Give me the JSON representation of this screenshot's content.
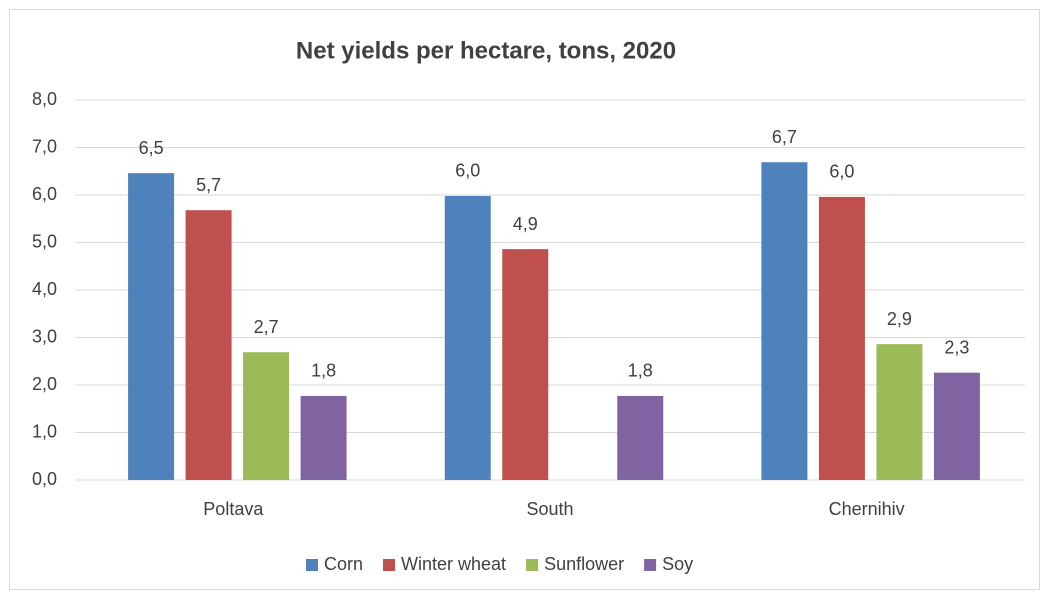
{
  "chart_data": {
    "type": "bar",
    "title": "Net yields per hectare, tons, 2020",
    "categories": [
      "Poltava",
      "South",
      "Chernihiv"
    ],
    "series": [
      {
        "name": "Corn",
        "color": "#4f81bd",
        "values": [
          6.46,
          5.98,
          6.69
        ],
        "value_labels": [
          "6,5",
          "6,0",
          "6,7"
        ]
      },
      {
        "name": "Winter wheat",
        "color": "#c0504d",
        "values": [
          5.68,
          4.86,
          5.96
        ],
        "value_labels": [
          "5,7",
          "4,9",
          "6,0"
        ]
      },
      {
        "name": "Sunflower",
        "color": "#9bbb59",
        "values": [
          2.69,
          null,
          2.86
        ],
        "value_labels": [
          "2,7",
          null,
          "2,9"
        ]
      },
      {
        "name": "Soy",
        "color": "#8064a2",
        "values": [
          1.77,
          1.77,
          2.26
        ],
        "value_labels": [
          "1,8",
          "1,8",
          "2,3"
        ]
      }
    ],
    "ylim": [
      0,
      8
    ],
    "yticks": [
      {
        "value": 0,
        "label": "0,0"
      },
      {
        "value": 1,
        "label": "1,0"
      },
      {
        "value": 2,
        "label": "2,0"
      },
      {
        "value": 3,
        "label": "3,0"
      },
      {
        "value": 4,
        "label": "4,0"
      },
      {
        "value": 5,
        "label": "5,0"
      },
      {
        "value": 6,
        "label": "6,0"
      },
      {
        "value": 7,
        "label": "7,0"
      },
      {
        "value": 8,
        "label": "8,0"
      }
    ],
    "grid": true,
    "legend": "bottom"
  }
}
